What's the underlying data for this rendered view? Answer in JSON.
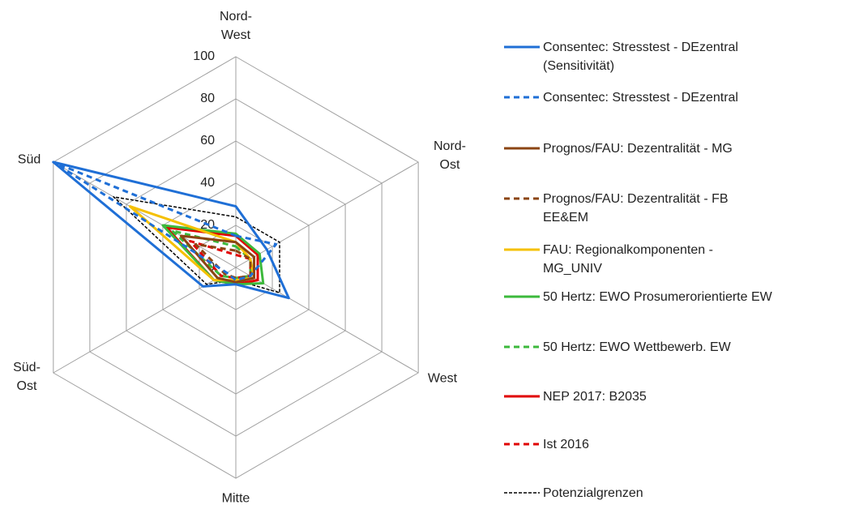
{
  "chart_data": {
    "type": "radar",
    "categories": [
      "Nord-West",
      "Nord-Ost",
      "West",
      "Mitte",
      "Süd-Ost",
      "Süd"
    ],
    "ylim": [
      0,
      100
    ],
    "yticks": [
      0,
      20,
      40,
      60,
      80,
      100
    ],
    "grid": true,
    "legend": "right",
    "series": [
      {
        "name": "Consentec: Stresstest - DEzentral (Sensitivität)",
        "color": "#1f6fd6",
        "dash": "solid",
        "values": [
          29,
          17,
          29,
          8,
          18,
          100
        ]
      },
      {
        "name": "Consentec: Stresstest - DEzentral",
        "color": "#1f6fd6",
        "dash": "dashed",
        "values": [
          15,
          22,
          8,
          6,
          5,
          100
        ]
      },
      {
        "name": "Prognos/FAU: Dezentralität - MG",
        "color": "#8b4513",
        "dash": "solid",
        "values": [
          12,
          10,
          10,
          7,
          10,
          30
        ]
      },
      {
        "name": "Prognos/FAU: Dezentralität - FB EE&EM",
        "color": "#8b4513",
        "dash": "dashed",
        "values": [
          8,
          8,
          8,
          5,
          6,
          22
        ]
      },
      {
        "name": "FAU: Regionalkomponenten - MG_UNIV",
        "color": "#f5c000",
        "dash": "solid",
        "values": [
          12,
          8,
          10,
          6,
          12,
          58
        ]
      },
      {
        "name": "50 Hertz: EWO Prosumerorientierte EW",
        "color": "#3cb93c",
        "dash": "solid",
        "values": [
          16,
          13,
          15,
          8,
          12,
          40
        ]
      },
      {
        "name": "50 Hertz: EWO Wettbewerb. EW",
        "color": "#3cb93c",
        "dash": "dashed",
        "values": [
          10,
          8,
          8,
          5,
          8,
          35
        ]
      },
      {
        "name": "NEP 2017: B2035",
        "color": "#e00000",
        "dash": "solid",
        "values": [
          15,
          12,
          12,
          8,
          12,
          38
        ]
      },
      {
        "name": "Ist 2016",
        "color": "#e00000",
        "dash": "dashed",
        "values": [
          6,
          8,
          8,
          5,
          8,
          25
        ]
      },
      {
        "name": "Potenzialgrenzen",
        "color": "#000000",
        "dash": "dotted",
        "values": [
          24,
          24,
          24,
          6,
          16,
          67
        ]
      }
    ]
  }
}
